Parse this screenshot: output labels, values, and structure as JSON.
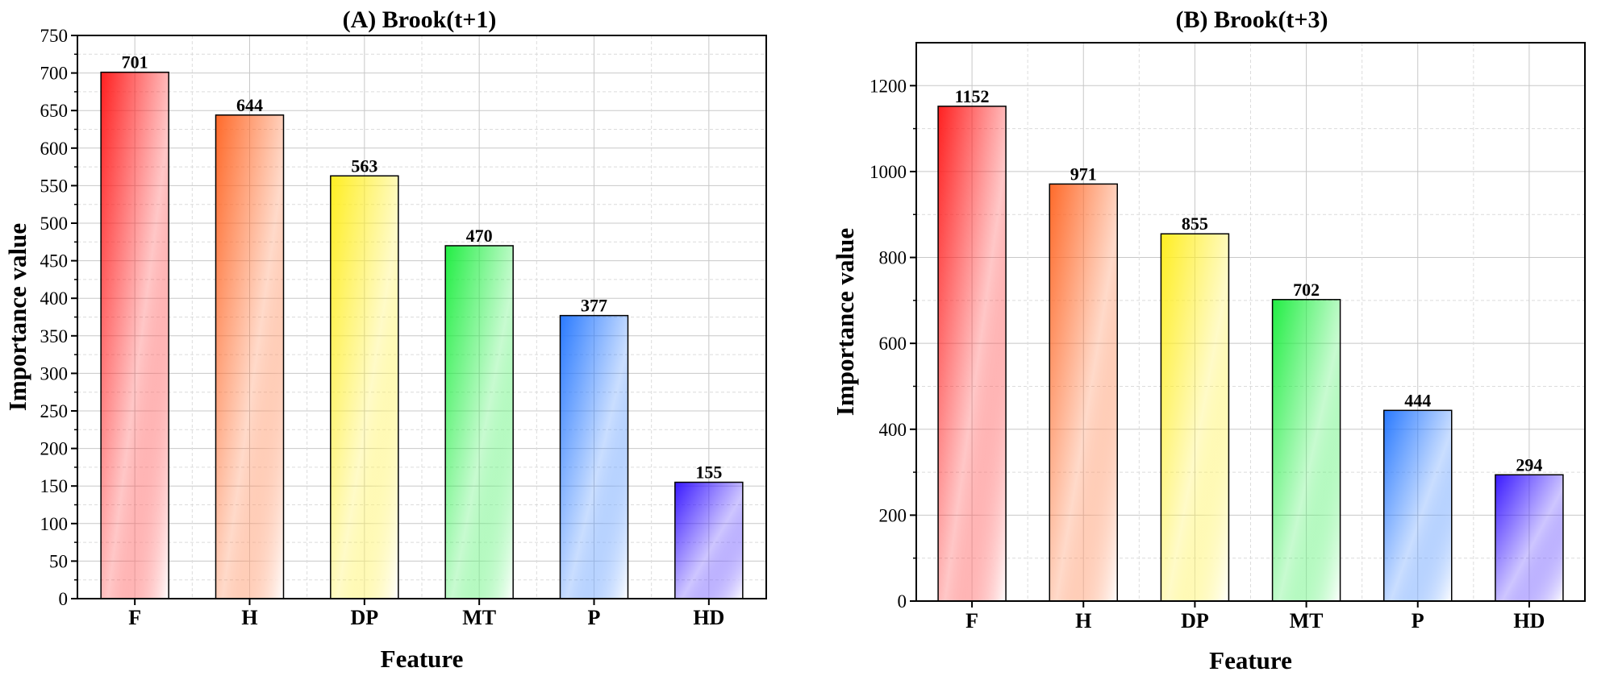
{
  "chart_data": [
    {
      "type": "bar",
      "title": "(A) Brook(t+1)",
      "xlabel": "Feature",
      "ylabel": "Importance value",
      "categories": [
        "F",
        "H",
        "DP",
        "MT",
        "P",
        "HD"
      ],
      "values": [
        701,
        644,
        563,
        470,
        377,
        155
      ],
      "value_labels": [
        "701",
        "644",
        "563",
        "470",
        "377",
        "155"
      ],
      "ylim": [
        0,
        750
      ],
      "yticks": [
        0,
        50,
        100,
        150,
        200,
        250,
        300,
        350,
        400,
        450,
        500,
        550,
        600,
        650,
        700,
        750
      ],
      "grid": true,
      "bar_colors": [
        "#ff2020",
        "#ff6a2a",
        "#ffee22",
        "#22ee44",
        "#2a7aff",
        "#3a1aff"
      ]
    },
    {
      "type": "bar",
      "title": "(B) Brook(t+3)",
      "xlabel": "Feature",
      "ylabel": "Importance value",
      "categories": [
        "F",
        "H",
        "DP",
        "MT",
        "P",
        "HD"
      ],
      "values": [
        1152,
        971,
        855,
        702,
        444,
        294
      ],
      "value_labels": [
        "1152",
        "971",
        "855",
        "702",
        "444",
        "294"
      ],
      "ylim": [
        0,
        1300
      ],
      "yticks": [
        0,
        200,
        400,
        600,
        800,
        1000,
        1200
      ],
      "grid": true,
      "bar_colors": [
        "#ff2020",
        "#ff6a2a",
        "#ffee22",
        "#22ee44",
        "#2a7aff",
        "#3a1aff"
      ]
    }
  ]
}
